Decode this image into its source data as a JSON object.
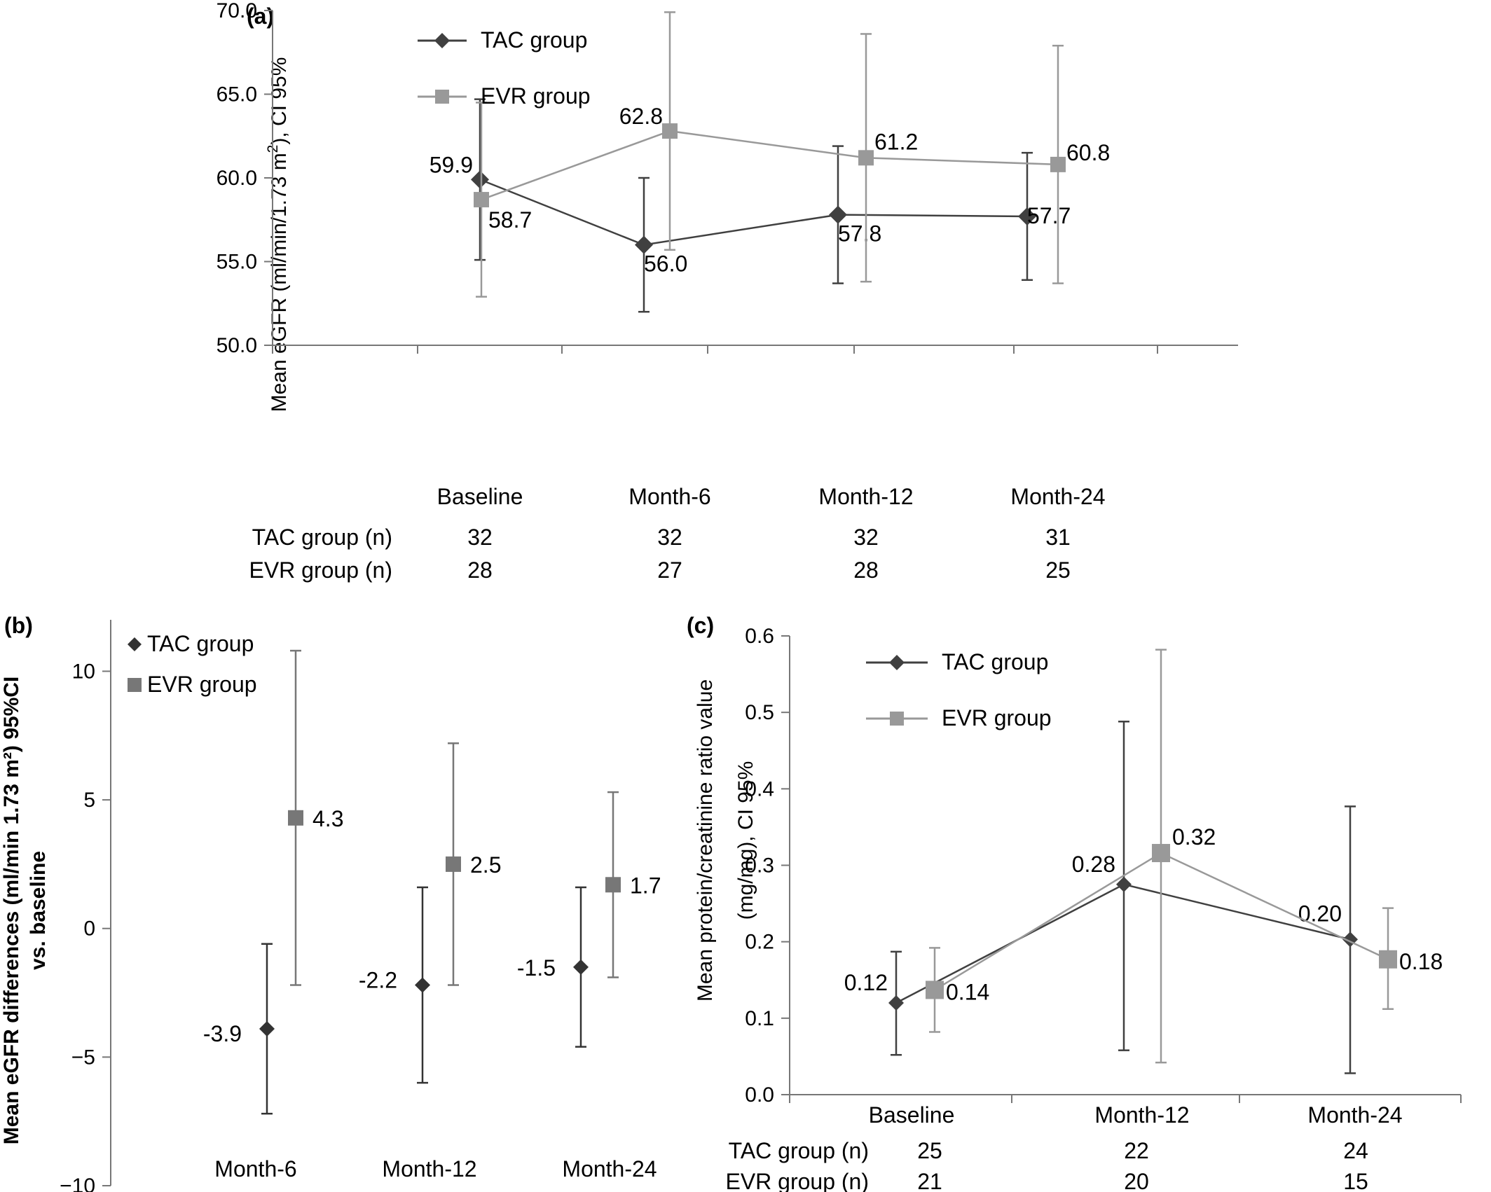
{
  "chart_data": [
    {
      "panel": "(a)",
      "type": "line",
      "ylabel": "Mean eGFR (ml/min/1.73 m², CI 95%",
      "ylabel_parts": [
        "Mean eGFR (ml/min/1.73 m",
        "2",
        "), CI 95%"
      ],
      "ylim": [
        50,
        70
      ],
      "yticks": [
        "50.0",
        "55.0",
        "60.0",
        "65.0",
        "70.0"
      ],
      "categories": [
        "Baseline",
        "Month-6",
        "Month-12",
        "Month-24"
      ],
      "series": [
        {
          "name": "TAC group",
          "color": "#404040",
          "marker": "diamond",
          "values": [
            59.9,
            56.0,
            57.8,
            57.7
          ],
          "labels": [
            "59.9",
            "56.0",
            "57.8",
            "57.7"
          ],
          "ci_low": [
            55.1,
            52.0,
            53.7,
            53.9
          ],
          "ci_high": [
            64.7,
            60.0,
            61.9,
            61.5
          ]
        },
        {
          "name": "EVR group",
          "color": "#999999",
          "marker": "square",
          "values": [
            58.7,
            62.8,
            61.2,
            60.8
          ],
          "labels": [
            "58.7",
            "62.8",
            "61.2",
            "60.8"
          ],
          "ci_low": [
            52.9,
            55.7,
            53.8,
            53.7
          ],
          "ci_high": [
            64.5,
            69.9,
            68.6,
            67.9
          ]
        }
      ],
      "n_table": [
        {
          "label": "TAC group (n)",
          "values": [
            "32",
            "32",
            "32",
            "31"
          ]
        },
        {
          "label": "EVR group (n)",
          "values": [
            "28",
            "27",
            "28",
            "25"
          ]
        }
      ],
      "legend": "top-left"
    },
    {
      "panel": "(b)",
      "type": "scatter",
      "ylabel_lines": [
        "Mean eGFR differences (ml/min 1.73 m²) 95%CI",
        "vs. baseline"
      ],
      "ylim": [
        -10,
        12
      ],
      "yticks": [
        "−10",
        "−5",
        "0",
        "5",
        "10"
      ],
      "categories": [
        "Month-6",
        "Month-12",
        "Month-24"
      ],
      "series": [
        {
          "name": "TAC group",
          "color": "#333333",
          "marker": "diamond",
          "values": [
            -3.9,
            -2.2,
            -1.5
          ],
          "labels": [
            "-3.9",
            "-2.2",
            "-1.5"
          ],
          "ci_low": [
            -7.2,
            -6.0,
            -4.6
          ],
          "ci_high": [
            -0.6,
            1.6,
            1.6
          ]
        },
        {
          "name": "EVR group",
          "color": "#777777",
          "marker": "square",
          "values": [
            4.3,
            2.5,
            1.7
          ],
          "labels": [
            "4.3",
            "2.5",
            "1.7"
          ],
          "ci_low": [
            -2.2,
            -2.2,
            -1.9
          ],
          "ci_high": [
            10.8,
            7.2,
            5.3
          ]
        }
      ],
      "legend": "top-left"
    },
    {
      "panel": "(c)",
      "type": "line",
      "ylabel_lines": [
        "Mean protein/creatinine ratio value",
        "(mg/mg), CI 95%"
      ],
      "ylim": [
        0,
        0.6
      ],
      "yticks": [
        "0.0",
        "0.1",
        "0.2",
        "0.3",
        "0.4",
        "0.5",
        "0.6"
      ],
      "categories": [
        "Baseline",
        "Month-12",
        "Month-24"
      ],
      "series": [
        {
          "name": "TAC group",
          "color": "#404040",
          "marker": "diamond",
          "values": [
            0.12,
            0.275,
            0.203
          ],
          "labels": [
            "0.12",
            "0.28",
            "0.20"
          ],
          "ci_low": [
            0.052,
            0.058,
            0.028
          ],
          "ci_high": [
            0.187,
            0.488,
            0.377
          ]
        },
        {
          "name": "EVR group",
          "color": "#999999",
          "marker": "square",
          "values": [
            0.137,
            0.316,
            0.177
          ],
          "labels": [
            "0.14",
            "0.32",
            "0.18"
          ],
          "ci_low": [
            0.082,
            0.042,
            0.112
          ],
          "ci_high": [
            0.192,
            0.582,
            0.244
          ]
        }
      ],
      "n_table": [
        {
          "label": "TAC group (n)",
          "values": [
            "25",
            "22",
            "24"
          ]
        },
        {
          "label": "EVR group (n)",
          "values": [
            "21",
            "20",
            "15"
          ]
        }
      ],
      "legend": "top-left"
    }
  ]
}
